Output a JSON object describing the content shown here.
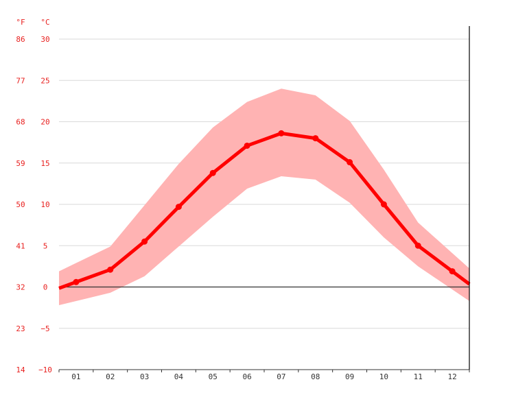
{
  "chart_data": {
    "type": "line",
    "title": "",
    "xlabel": "",
    "ylabel": "",
    "unit_left": "°F",
    "unit_right": "°C",
    "categories": [
      "01",
      "02",
      "03",
      "04",
      "05",
      "06",
      "07",
      "08",
      "09",
      "10",
      "11",
      "12"
    ],
    "ylim": [
      -10,
      30
    ],
    "yticks_c": [
      "30",
      "25",
      "20",
      "15",
      "10",
      "5",
      "0",
      "−5",
      "−10"
    ],
    "yticks_f": [
      "86",
      "77",
      "68",
      "59",
      "50",
      "41",
      "32",
      "23",
      "14"
    ],
    "series": [
      {
        "values": [
          0.6,
          2.1,
          5.5,
          9.7,
          13.8,
          17.1,
          18.6,
          18.0,
          15.1,
          10.0,
          5.0,
          1.9
        ]
      }
    ],
    "band": {
      "max": [
        2.9,
        4.9,
        9.9,
        14.9,
        19.3,
        22.4,
        24.0,
        23.2,
        20.1,
        14.2,
        7.8,
        4.1
      ],
      "min": [
        -1.7,
        -0.7,
        1.3,
        4.9,
        8.5,
        11.9,
        13.4,
        13.0,
        10.2,
        6.0,
        2.5,
        -0.3
      ]
    },
    "grid": true,
    "colors": {
      "line": "#ff0000",
      "band": "#ffb3b3",
      "grid": "#d9d9d9",
      "axis": "#333333",
      "labels": "#e8201f"
    }
  }
}
